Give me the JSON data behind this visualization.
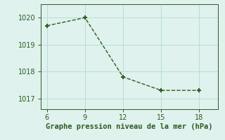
{
  "x": [
    6,
    9,
    12,
    15,
    18
  ],
  "y": [
    1019.7,
    1020.0,
    1017.8,
    1017.3,
    1017.3
  ],
  "line_color": "#2d5a1e",
  "marker_style": "+",
  "marker_size": 5,
  "marker_lw": 1.5,
  "background_color": "#dff2ee",
  "grid_color": "#b8ddd6",
  "xlabel": "Graphe pression niveau de la mer (hPa)",
  "xlabel_color": "#2d5a1e",
  "xlabel_fontsize": 7.5,
  "tick_color": "#2d5a1e",
  "tick_fontsize": 7,
  "xlim": [
    5.5,
    19.5
  ],
  "ylim": [
    1016.6,
    1020.5
  ],
  "yticks": [
    1017,
    1018,
    1019,
    1020
  ],
  "xticks": [
    6,
    9,
    12,
    15,
    18
  ],
  "line_style": "--",
  "line_width": 1.0,
  "spine_color": "#2d5a1e"
}
